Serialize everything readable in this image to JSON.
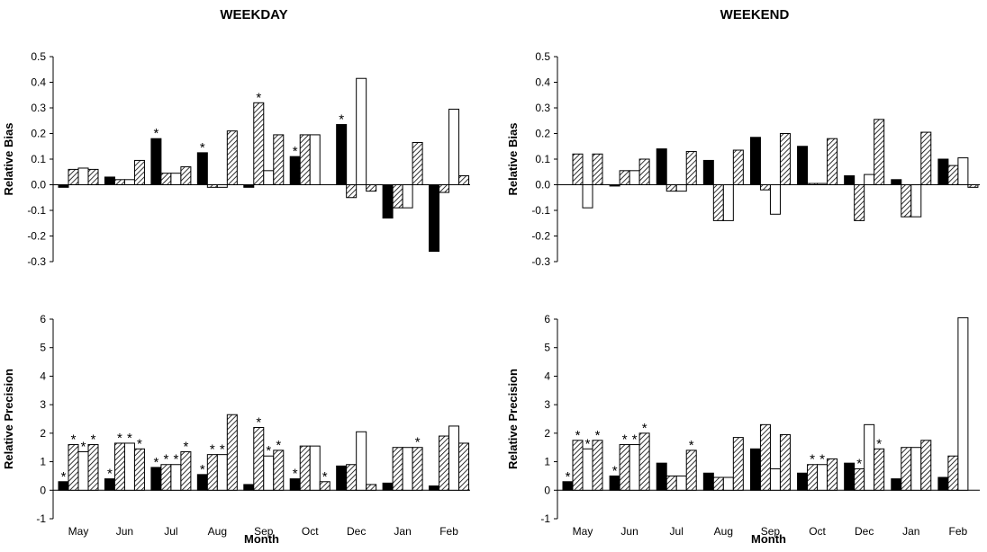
{
  "columns": {
    "weekday_title": "WEEKDAY",
    "weekend_title": "WEEKEND"
  },
  "axis_labels": {
    "bias": "Relative Bias",
    "precision": "Relative Precision",
    "x": "Month"
  },
  "colors": {
    "series1": "#000000",
    "series2_hatch": "#000000",
    "series3": "#ffffff",
    "outline": "#000000"
  },
  "chart_data": [
    {
      "type": "bar",
      "panel": "weekday-bias",
      "title": "WEEKDAY",
      "xlabel": "",
      "ylabel": "Relative Bias",
      "ylim": [
        -0.3,
        0.5
      ],
      "yticks": [
        0.5,
        0.4,
        0.3,
        0.2,
        0.1,
        0.0,
        -0.1,
        -0.2,
        -0.3
      ],
      "categories": [
        "May",
        "Jun",
        "Jul",
        "Aug",
        "Sep",
        "Oct",
        "Dec",
        "Jan",
        "Feb"
      ],
      "series": [
        {
          "pattern": "solid",
          "values": [
            -0.01,
            0.03,
            0.18,
            0.125,
            -0.01,
            0.11,
            0.235,
            -0.13,
            -0.26
          ],
          "stars": [
            false,
            false,
            true,
            true,
            false,
            true,
            true,
            false,
            false
          ]
        },
        {
          "pattern": "hatch",
          "values": [
            0.06,
            0.02,
            0.045,
            -0.01,
            0.32,
            0.195,
            -0.05,
            -0.09,
            -0.03
          ],
          "stars": [
            false,
            false,
            false,
            false,
            true,
            false,
            false,
            false,
            false
          ]
        },
        {
          "pattern": "white",
          "values": [
            0.065,
            0.02,
            0.045,
            -0.01,
            0.055,
            0.195,
            0.415,
            -0.09,
            0.295
          ],
          "stars": [
            false,
            false,
            false,
            false,
            false,
            false,
            false,
            false,
            false
          ]
        },
        {
          "pattern": "hatch",
          "values": [
            0.06,
            0.095,
            0.07,
            0.21,
            0.195,
            0.0,
            -0.025,
            0.165,
            0.035
          ],
          "stars": [
            false,
            false,
            false,
            false,
            false,
            false,
            false,
            false,
            false
          ]
        }
      ]
    },
    {
      "type": "bar",
      "panel": "weekend-bias",
      "title": "WEEKEND",
      "xlabel": "",
      "ylabel": "Relative Bias",
      "ylim": [
        -0.3,
        0.5
      ],
      "yticks": [
        0.5,
        0.4,
        0.3,
        0.2,
        0.1,
        0.0,
        -0.1,
        -0.2,
        -0.3
      ],
      "categories": [
        "May",
        "Jun",
        "Jul",
        "Aug",
        "Sep",
        "Oct",
        "Dec",
        "Jan",
        "Feb"
      ],
      "series": [
        {
          "pattern": "solid",
          "values": [
            0.0,
            -0.005,
            0.14,
            0.095,
            0.185,
            0.15,
            0.035,
            0.02,
            0.1
          ],
          "stars": [
            false,
            false,
            false,
            false,
            false,
            false,
            false,
            false,
            false
          ]
        },
        {
          "pattern": "hatch",
          "values": [
            0.12,
            0.055,
            -0.025,
            -0.14,
            -0.02,
            0.005,
            -0.14,
            -0.125,
            0.075
          ],
          "stars": [
            false,
            false,
            false,
            false,
            false,
            false,
            false,
            false,
            false
          ]
        },
        {
          "pattern": "white",
          "values": [
            -0.09,
            0.055,
            -0.025,
            -0.14,
            -0.115,
            0.005,
            0.04,
            -0.125,
            0.105
          ],
          "stars": [
            false,
            false,
            false,
            false,
            false,
            false,
            false,
            false,
            false
          ]
        },
        {
          "pattern": "hatch",
          "values": [
            0.12,
            0.1,
            0.13,
            0.135,
            0.2,
            0.18,
            0.255,
            0.205,
            -0.01
          ],
          "stars": [
            false,
            false,
            false,
            false,
            false,
            false,
            false,
            false,
            false
          ]
        }
      ]
    },
    {
      "type": "bar",
      "panel": "weekday-precision",
      "title": "",
      "xlabel": "Month",
      "ylabel": "Relative Precision",
      "ylim": [
        -1,
        6
      ],
      "yticks": [
        6,
        5,
        4,
        3,
        2,
        1,
        0,
        -1
      ],
      "categories": [
        "May",
        "Jun",
        "Jul",
        "Aug",
        "Sep",
        "Oct",
        "Dec",
        "Jan",
        "Feb"
      ],
      "series": [
        {
          "pattern": "solid",
          "values": [
            0.3,
            0.4,
            0.8,
            0.55,
            0.2,
            0.4,
            0.85,
            0.25,
            0.15
          ],
          "stars": [
            true,
            true,
            true,
            true,
            false,
            true,
            false,
            false,
            false
          ]
        },
        {
          "pattern": "hatch",
          "values": [
            1.6,
            1.65,
            0.9,
            1.25,
            2.2,
            1.55,
            0.9,
            1.5,
            1.9
          ],
          "stars": [
            true,
            true,
            true,
            true,
            true,
            false,
            false,
            false,
            false
          ]
        },
        {
          "pattern": "white",
          "values": [
            1.35,
            1.65,
            0.9,
            1.25,
            1.2,
            1.55,
            2.05,
            1.5,
            2.25
          ],
          "stars": [
            true,
            true,
            true,
            true,
            true,
            false,
            false,
            false,
            false
          ]
        },
        {
          "pattern": "hatch",
          "values": [
            1.6,
            1.45,
            1.35,
            2.65,
            1.4,
            0.3,
            0.2,
            1.5,
            1.65
          ],
          "stars": [
            true,
            true,
            true,
            false,
            true,
            true,
            false,
            true,
            false
          ]
        }
      ]
    },
    {
      "type": "bar",
      "panel": "weekend-precision",
      "title": "",
      "xlabel": "Month",
      "ylabel": "Relative Precision",
      "ylim": [
        -1,
        6
      ],
      "yticks": [
        6,
        5,
        4,
        3,
        2,
        1,
        0,
        -1
      ],
      "categories": [
        "May",
        "Jun",
        "Jul",
        "Aug",
        "Sep",
        "Oct",
        "Dec",
        "Jan",
        "Feb"
      ],
      "series": [
        {
          "pattern": "solid",
          "values": [
            0.3,
            0.5,
            0.95,
            0.6,
            1.45,
            0.6,
            0.95,
            0.4,
            0.45
          ],
          "stars": [
            true,
            true,
            false,
            false,
            false,
            false,
            false,
            false,
            false
          ]
        },
        {
          "pattern": "hatch",
          "values": [
            1.75,
            1.6,
            0.5,
            0.45,
            2.3,
            0.9,
            0.75,
            1.5,
            1.2
          ],
          "stars": [
            true,
            true,
            false,
            false,
            false,
            true,
            true,
            false,
            false
          ]
        },
        {
          "pattern": "white",
          "values": [
            1.45,
            1.6,
            0.5,
            0.45,
            0.75,
            0.9,
            2.3,
            1.5,
            6.05
          ],
          "stars": [
            true,
            true,
            false,
            false,
            false,
            true,
            false,
            false,
            false
          ]
        },
        {
          "pattern": "hatch",
          "values": [
            1.75,
            2.0,
            1.4,
            1.85,
            1.95,
            1.1,
            1.45,
            1.75,
            0.0
          ],
          "stars": [
            true,
            true,
            true,
            false,
            false,
            false,
            true,
            false,
            false
          ]
        }
      ]
    }
  ]
}
